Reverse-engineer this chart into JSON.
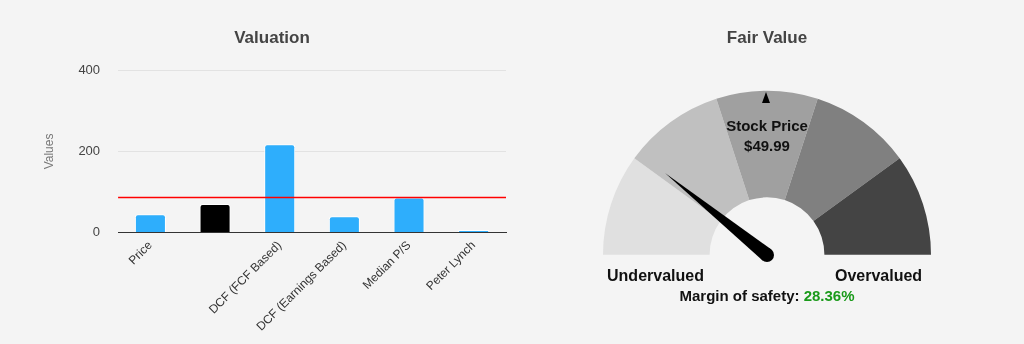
{
  "chart_data": [
    {
      "type": "bar",
      "title": "Valuation",
      "ylabel": "Values",
      "categories": [
        "Price",
        null,
        "DCF (FCF Based)",
        "DCF (Earnings Based)",
        "Median P/S",
        "Peter Lynch"
      ],
      "values": [
        45,
        70,
        218,
        40,
        86,
        6
      ],
      "colors": [
        "#2eaefc",
        "#000000",
        "#2eaefc",
        "#2eaefc",
        "#2eaefc",
        "#2eaefc"
      ],
      "ylim": [
        0,
        400
      ],
      "yticks": [
        0,
        200,
        400
      ],
      "grid": "y",
      "legend": false,
      "ref_lines": [
        {
          "axis": "y",
          "value": 86,
          "color": "#ff0000"
        }
      ]
    },
    {
      "type": "donut",
      "title": "Fair Value",
      "categories": [
        null,
        null,
        null,
        null,
        null
      ],
      "values": [
        20,
        20,
        20,
        20,
        20
      ],
      "colors": [
        "#e0e0e0",
        "#c0c0c0",
        "#a0a0a0",
        "#808080",
        "#444444"
      ],
      "legend": false,
      "annotations": [
        "Stock Price",
        "$49.99",
        "Margin of safety:",
        "28.36%",
        "Undervalued",
        "Overvalued"
      ]
    }
  ]
}
